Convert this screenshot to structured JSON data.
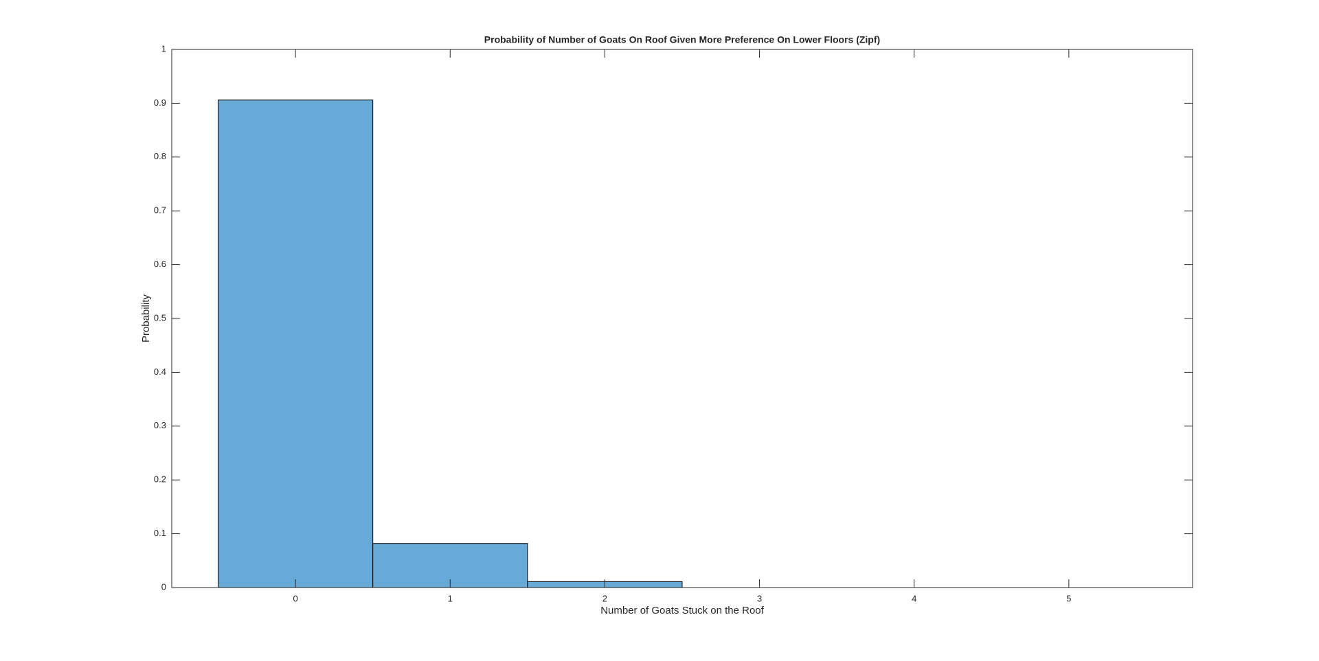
{
  "chart_data": {
    "type": "histogram",
    "title": "Probability of Number of Goats On Roof Given More Preference On Lower Floors (Zipf)",
    "x_label": "Number of Goats Stuck on the Roof",
    "y_label": "Probability",
    "bins": [
      -0.5,
      0.5,
      1.5,
      2.5
    ],
    "values": [
      0.906,
      0.082,
      0.011
    ],
    "color": "#67aad8",
    "xlim": [
      -0.8,
      5.8
    ],
    "xticks": [
      0,
      1,
      2,
      3,
      4,
      5
    ],
    "ylim": [
      0,
      1
    ],
    "yticks": [
      0,
      0.1,
      0.2,
      0.3,
      0.4,
      0.5,
      0.6,
      0.7,
      0.8,
      0.9,
      1
    ],
    "grid": false
  }
}
